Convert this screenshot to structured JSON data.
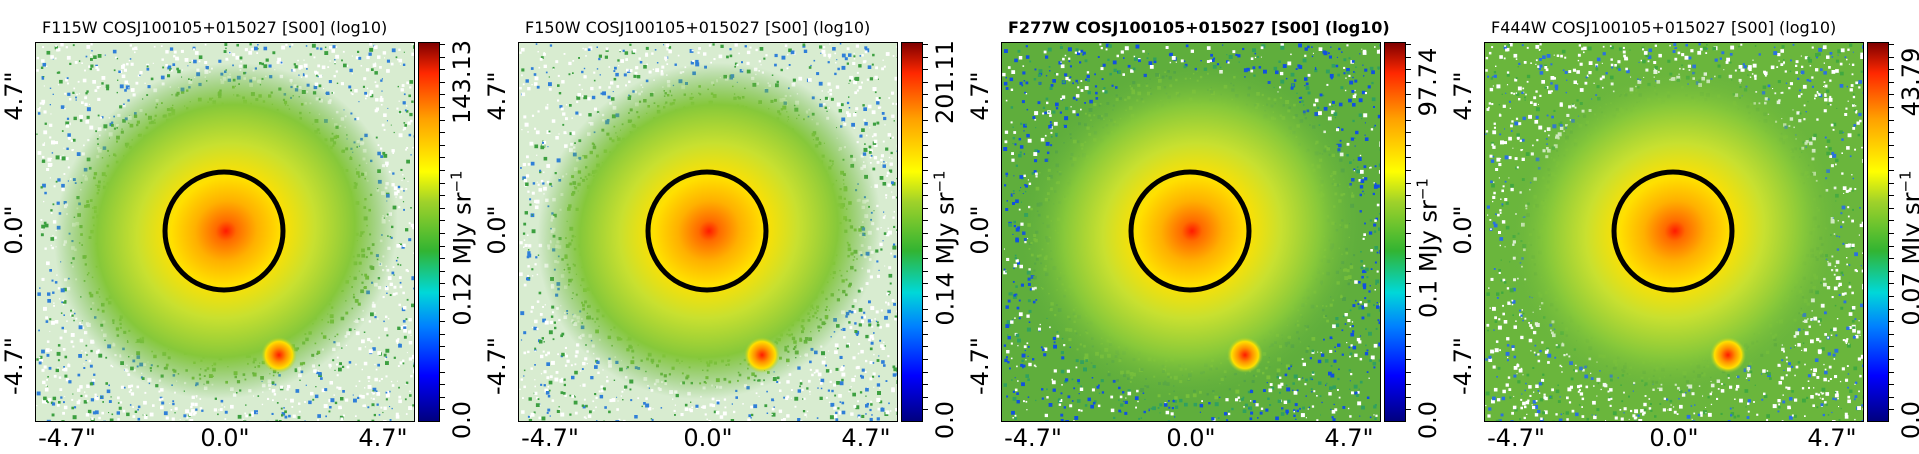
{
  "panels": [
    {
      "title": "F115W COSJ100105+015027 [S00] (log10)",
      "title_bold": false,
      "cbar_max": "143.13",
      "cbar_mid": "0.12 MJy sr",
      "cbar_min": "0.0",
      "noise": "light-white"
    },
    {
      "title": "F150W COSJ100105+015027 [S00] (log10)",
      "title_bold": false,
      "cbar_max": "201.11",
      "cbar_mid": "0.14 MJy sr",
      "cbar_min": "0.0",
      "noise": "light-white"
    },
    {
      "title": "F277W COSJ100105+015027 [S00] (log10)",
      "title_bold": true,
      "cbar_max": "97.74",
      "cbar_mid": "0.1 MJy sr",
      "cbar_min": "0.0",
      "noise": "blue-green"
    },
    {
      "title": "F444W COSJ100105+015027 [S00] (log10)",
      "title_bold": false,
      "cbar_max": "43.79",
      "cbar_mid": "0.07 MJy sr",
      "cbar_min": "0.0",
      "noise": "white-patches"
    }
  ],
  "unit_superscript": "−1",
  "x_ticks": [
    "-4.7\"",
    "0.0\"",
    "4.7\""
  ],
  "y_ticks": [
    "-4.7\"",
    "0.0\"",
    "4.7\""
  ],
  "colors": {
    "background": "#ffffff",
    "circle": "#000000",
    "core": "#ff2000",
    "glow": "#ffd800",
    "halo": "#7ac832"
  }
}
